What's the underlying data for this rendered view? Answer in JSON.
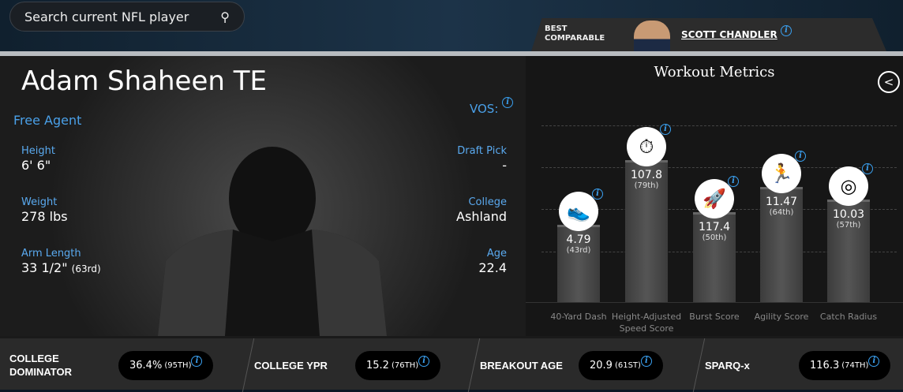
{
  "search": {
    "placeholder": "Search current NFL player"
  },
  "comparable": {
    "label_line1": "BEST",
    "label_line2": "COMPARABLE",
    "name": "SCOTT CHANDLER"
  },
  "player": {
    "name": "Adam Shaheen TE",
    "team": "Free Agent",
    "vos_label": "VOS:",
    "left_stats": [
      {
        "label": "Height",
        "value": "6' 6\""
      },
      {
        "label": "Weight",
        "value": "278 lbs"
      },
      {
        "label": "Arm Length",
        "value": "33 1/2\"",
        "rank": "(63rd)"
      }
    ],
    "right_stats": [
      {
        "label": "Draft Pick",
        "value": "-"
      },
      {
        "label": "College",
        "value": "Ashland"
      },
      {
        "label": "Age",
        "value": "22.4"
      }
    ]
  },
  "workout": {
    "title": "Workout Metrics",
    "metrics": [
      {
        "label": "40-Yard Dash",
        "value": "4.79",
        "rank": "(43rd)",
        "percentile": 43,
        "icon": "shoe-icon"
      },
      {
        "label": "Height-Adjusted Speed Score",
        "value": "107.8",
        "rank": "(79th)",
        "percentile": 79,
        "icon": "stopwatch-icon"
      },
      {
        "label": "Burst Score",
        "value": "117.4",
        "rank": "(50th)",
        "percentile": 50,
        "icon": "rocket-icon"
      },
      {
        "label": "Agility Score",
        "value": "11.47",
        "rank": "(64th)",
        "percentile": 64,
        "icon": "runner-icon"
      },
      {
        "label": "Catch Radius",
        "value": "10.03",
        "rank": "(57th)",
        "percentile": 57,
        "icon": "target-icon"
      }
    ]
  },
  "bottom": [
    {
      "label": "COLLEGE DOMINATOR",
      "value": "36.4%",
      "rank": "(95TH)"
    },
    {
      "label": "COLLEGE YPR",
      "value": "15.2",
      "rank": "(76TH)"
    },
    {
      "label": "BREAKOUT AGE",
      "value": "20.9",
      "rank": "(61ST)"
    },
    {
      "label": "SPARQ-x",
      "value": "116.3",
      "rank": "(74TH)"
    }
  ]
}
